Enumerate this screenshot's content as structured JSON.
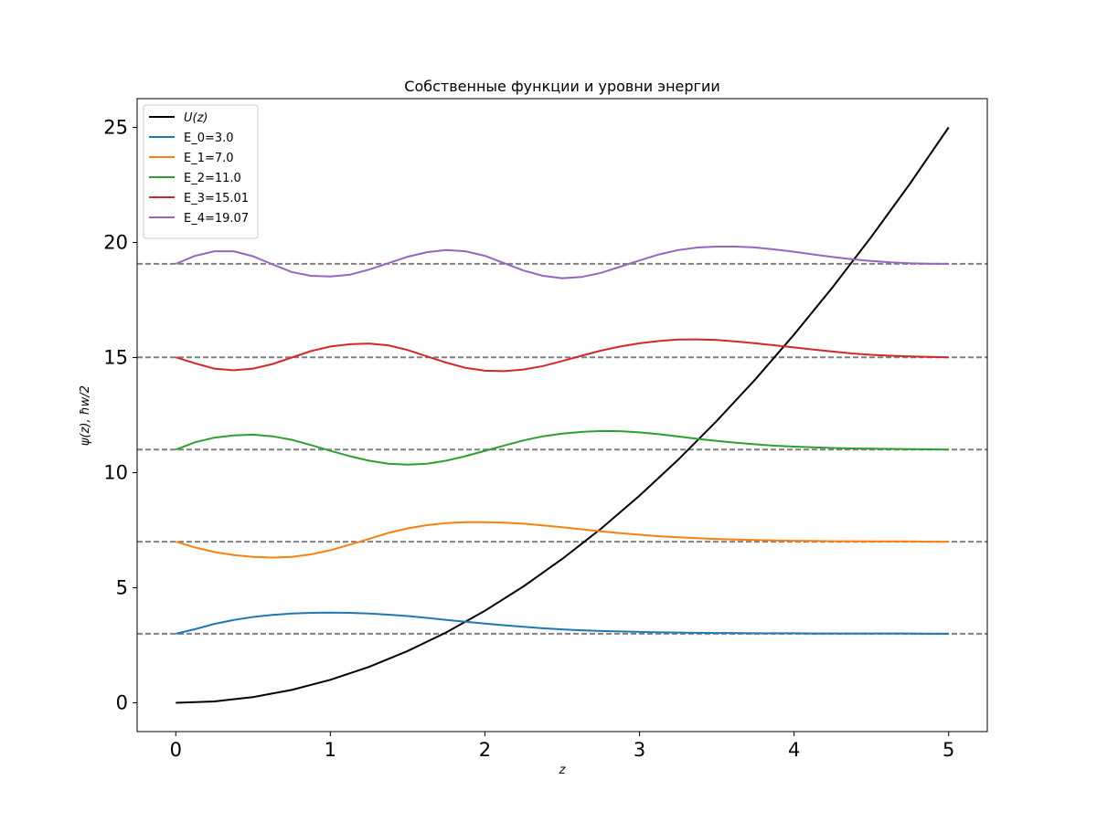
{
  "chart_data": {
    "type": "line",
    "title": "Собственные функции и уровни энергии",
    "xlabel": "z",
    "ylabel": "ψ(z), ħw/2",
    "xlim": [
      -0.25,
      5.25
    ],
    "ylim": [
      -1.25,
      26.25
    ],
    "x_ticks": [
      0,
      1,
      2,
      3,
      4,
      5
    ],
    "y_ticks": [
      0,
      5,
      10,
      15,
      20,
      25
    ],
    "grid": false,
    "legend_position": "upper-left",
    "potential": {
      "name": "U(z)",
      "color": "#000000",
      "x": [
        0,
        0.25,
        0.5,
        0.75,
        1,
        1.25,
        1.5,
        1.75,
        2,
        2.25,
        2.5,
        2.75,
        3,
        3.25,
        3.5,
        3.75,
        4,
        4.25,
        4.5,
        4.75,
        5
      ],
      "y": [
        0,
        0.06,
        0.25,
        0.56,
        1,
        1.56,
        2.25,
        3.06,
        4,
        5.06,
        6.25,
        7.56,
        9,
        10.56,
        12.25,
        14.06,
        16,
        18.06,
        20.25,
        22.56,
        25
      ]
    },
    "x": [
      0,
      0.125,
      0.25,
      0.375,
      0.5,
      0.625,
      0.75,
      0.875,
      1,
      1.125,
      1.25,
      1.375,
      1.5,
      1.625,
      1.75,
      1.875,
      2,
      2.125,
      2.25,
      2.375,
      2.5,
      2.625,
      2.75,
      2.875,
      3,
      3.125,
      3.25,
      3.375,
      3.5,
      3.625,
      3.75,
      3.875,
      4,
      4.125,
      4.25,
      4.375,
      4.5,
      4.625,
      4.75,
      4.875,
      5
    ],
    "series": [
      {
        "name": "E_0=3.0",
        "color": "#1f77b4",
        "level": 3.0,
        "values": [
          3.0,
          3.2,
          3.43,
          3.6,
          3.73,
          3.82,
          3.88,
          3.91,
          3.92,
          3.91,
          3.88,
          3.83,
          3.77,
          3.69,
          3.6,
          3.52,
          3.44,
          3.37,
          3.3,
          3.24,
          3.19,
          3.15,
          3.12,
          3.1,
          3.08,
          3.06,
          3.05,
          3.04,
          3.03,
          3.03,
          3.02,
          3.02,
          3.02,
          3.01,
          3.01,
          3.01,
          3.01,
          3.01,
          3.01,
          3.0,
          3.0
        ]
      },
      {
        "name": "E_1=7.0",
        "color": "#ff7f0e",
        "level": 7.0,
        "values": [
          7.0,
          6.75,
          6.55,
          6.42,
          6.34,
          6.31,
          6.34,
          6.45,
          6.63,
          6.87,
          7.12,
          7.38,
          7.58,
          7.72,
          7.81,
          7.85,
          7.85,
          7.83,
          7.78,
          7.71,
          7.63,
          7.54,
          7.45,
          7.37,
          7.3,
          7.24,
          7.19,
          7.15,
          7.12,
          7.09,
          7.07,
          7.05,
          7.04,
          7.03,
          7.02,
          7.02,
          7.01,
          7.01,
          7.01,
          7.0,
          7.0
        ]
      },
      {
        "name": "E_2=11.0",
        "color": "#2ca02c",
        "level": 11.0,
        "values": [
          11.0,
          11.32,
          11.52,
          11.62,
          11.65,
          11.58,
          11.43,
          11.2,
          10.95,
          10.72,
          10.52,
          10.39,
          10.35,
          10.39,
          10.52,
          10.72,
          10.95,
          11.18,
          11.4,
          11.58,
          11.7,
          11.77,
          11.81,
          11.8,
          11.75,
          11.67,
          11.57,
          11.47,
          11.38,
          11.3,
          11.23,
          11.17,
          11.13,
          11.1,
          11.07,
          11.05,
          11.04,
          11.03,
          11.02,
          11.01,
          11.0
        ]
      },
      {
        "name": "E_3=15.01",
        "color": "#d62728",
        "level": 15.01,
        "values": [
          15.01,
          14.75,
          14.52,
          14.45,
          14.52,
          14.72,
          15.0,
          15.28,
          15.48,
          15.58,
          15.61,
          15.53,
          15.33,
          15.05,
          14.78,
          14.55,
          14.43,
          14.41,
          14.48,
          14.63,
          14.85,
          15.08,
          15.3,
          15.48,
          15.62,
          15.72,
          15.78,
          15.79,
          15.76,
          15.7,
          15.62,
          15.53,
          15.44,
          15.35,
          15.26,
          15.18,
          15.12,
          15.08,
          15.05,
          15.03,
          15.01
        ]
      },
      {
        "name": "E_4=19.07",
        "color": "#9467bd",
        "level": 19.07,
        "values": [
          19.07,
          19.42,
          19.62,
          19.62,
          19.4,
          19.05,
          18.72,
          18.55,
          18.52,
          18.6,
          18.82,
          19.1,
          19.38,
          19.58,
          19.67,
          19.62,
          19.42,
          19.1,
          18.78,
          18.55,
          18.45,
          18.5,
          18.68,
          18.95,
          19.22,
          19.48,
          19.67,
          19.78,
          19.82,
          19.82,
          19.78,
          19.7,
          19.6,
          19.48,
          19.37,
          19.27,
          19.2,
          19.14,
          19.1,
          19.08,
          19.07
        ]
      }
    ]
  }
}
